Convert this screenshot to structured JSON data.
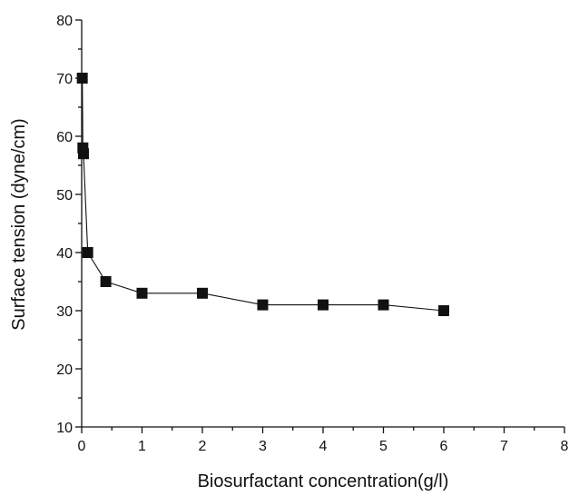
{
  "chart_data": {
    "type": "line",
    "title": "",
    "xlabel": "Biosurfactant concentration(g/l)",
    "ylabel": "Surface tension (dyne/cm)",
    "xlim": [
      0,
      8
    ],
    "ylim": [
      10,
      80
    ],
    "x_ticks": [
      "0",
      "1",
      "2",
      "3",
      "4",
      "5",
      "6",
      "7",
      "8"
    ],
    "y_ticks": [
      "10",
      "20",
      "30",
      "40",
      "50",
      "60",
      "70",
      "80"
    ],
    "grid": false,
    "legend": "none",
    "marker": "filled-square",
    "series_color": "#111111",
    "series": [
      {
        "x": [
          0.01,
          0.02,
          0.03,
          0.1,
          0.4,
          1,
          2,
          3,
          4,
          5,
          6
        ],
        "y": [
          70,
          58,
          57,
          40,
          35,
          33,
          33,
          31,
          31,
          31,
          30
        ]
      }
    ]
  }
}
